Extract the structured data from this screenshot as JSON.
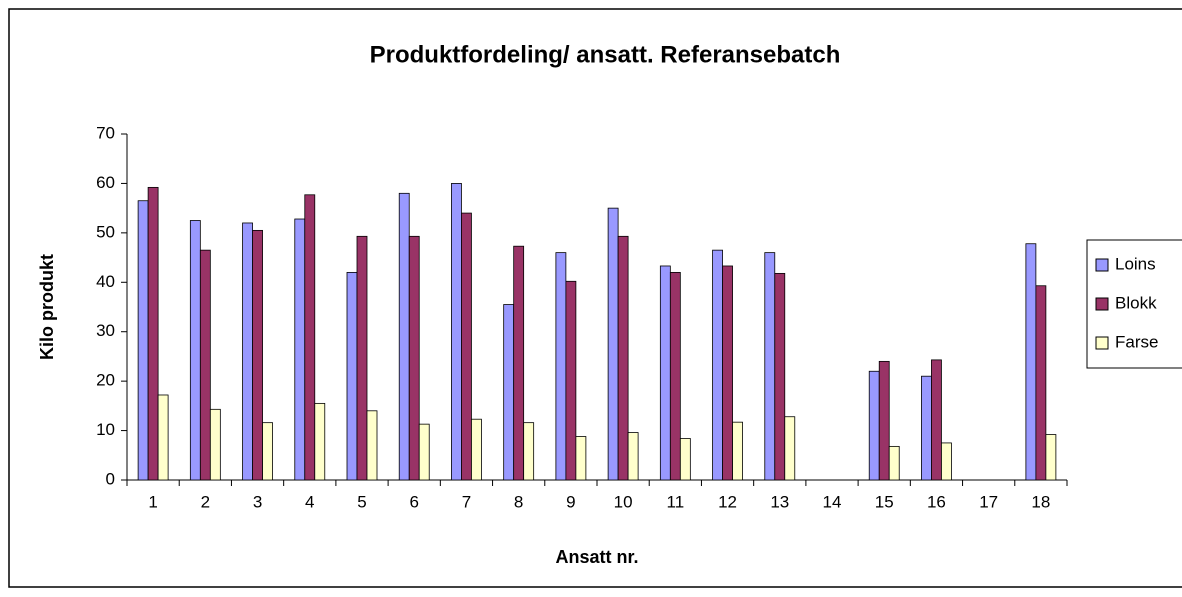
{
  "chart_data": {
    "type": "bar",
    "title": "Produktfordeling/ ansatt. Referansebatch",
    "x_label": "Ansatt nr.",
    "y_label": "Kilo produkt",
    "categories": [
      "1",
      "2",
      "3",
      "4",
      "5",
      "6",
      "7",
      "8",
      "9",
      "10",
      "11",
      "12",
      "13",
      "14",
      "15",
      "16",
      "17",
      "18"
    ],
    "series": [
      {
        "name": "Loins",
        "color": "#9999ff",
        "values": [
          56.5,
          52.5,
          52,
          52.8,
          42,
          58,
          60,
          35.5,
          46,
          55,
          43.3,
          46.5,
          46,
          null,
          22,
          21,
          null,
          47.8
        ]
      },
      {
        "name": "Blokk",
        "color": "#993366",
        "values": [
          59.2,
          46.5,
          50.5,
          57.7,
          49.3,
          49.3,
          54,
          47.3,
          40.2,
          49.3,
          42,
          43.3,
          41.8,
          null,
          24,
          24.3,
          null,
          39.3
        ]
      },
      {
        "name": "Farse",
        "color": "#ffffcc",
        "values": [
          17.2,
          14.3,
          11.6,
          15.5,
          14,
          11.3,
          12.3,
          11.6,
          8.8,
          9.6,
          8.4,
          11.7,
          12.8,
          null,
          6.8,
          7.5,
          null,
          9.2
        ]
      }
    ],
    "ylim": [
      0,
      70
    ],
    "yticks": [
      0,
      10,
      20,
      30,
      40,
      50,
      60,
      70
    ],
    "grid": false,
    "legend": "right"
  }
}
